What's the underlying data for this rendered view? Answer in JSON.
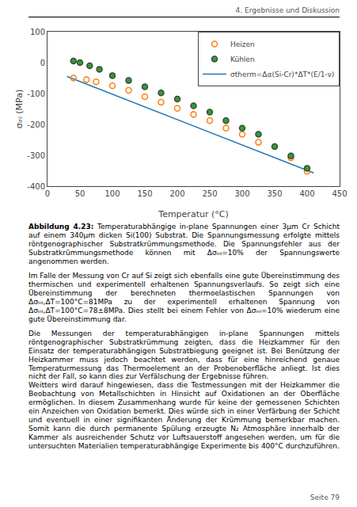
{
  "header": "4. Ergebnisse und Diskussion",
  "page": "Seite 79",
  "caption_label": "Abbildung 4.23:",
  "caption": " Temperaturabhängige in-plane Spannungen einer 3µm Cr Schicht auf einem 340µm dicken Si(100) Substrat. Die Spannungsmessung erfolgte mittels röntgenographischer Substratkrümmungsmethode. Die Spannungsfehler aus der Substratkrümmungsmethode können mit Δσᵢₙₗ=10% der Spannungswerte angenommen werden.",
  "paragraphs": [
    "Im Falle der Messung von Cr auf Si zeigt sich ebenfalls eine gute Übereinstimmung des thermischen und experimentell erhaltenen Spannungsverlaufs. So zeigt sich eine Übereinstimmung der berechneten thermoelastischen Spannungen von Δσᵢₙₗ,ΔT=100°C=81MPa zu der experimentell erhaltenen Spannung von Δσᵢₙₗ,ΔT=100°C=78±8MPa. Dies stellt bei einem Fehler von Δσᵢₙₗ=10% wiederum eine gute Übereinstimmung dar.",
    "Die Messungen der temperaturabhängigen in-plane Spannungen mittels röntgenographischer Substratkrümmung zeigten, dass die Heizkammer für den Einsatz der temperaturabhängigen Substratbiegung geeignet ist. Bei Benützung der Heizkammer muss jedoch beachtet werden, dass für eine hinreichend genaue Temperaturmessung das Thermoelement an der Probenoberfläche anliegt. Ist dies nicht der Fall, so kann dies zur Verfälschung der Ergebnisse führen.\nWeitters wird darauf hingewiesen, dass die Testmessungen mit der Heizkammer die Beobachtung von Metallschichten in Hinsicht auf Oxidationen an der Oberfläche ermöglichen. In diesem Zusammenhang wurde für keine der gemessenen Schichten ein Anzeichen von Oxidation bemerkt. Dies würde sich in einer Verfärbung der Schicht und eventuell in einer signifikanten Änderung der Krümmung bemerkbar machen. Somit kann die durch permanente Spülung erzeugte N₂ Atmosphäre innerhalb der Kammer als ausreichender Schutz vor Luftsauerstoff angesehen werden, um für die untersuchten Materialien temperaturabhängige Experimente bis 400°C durchzuführen."
  ],
  "chart_data": {
    "type": "scatter",
    "x_label": "Temperatur (°C)",
    "y_label": "σᵢₙₗ (MPa)",
    "xlim": [
      0,
      450
    ],
    "ylim": [
      -400,
      100
    ],
    "xticks": [
      0,
      50,
      100,
      150,
      200,
      250,
      300,
      350,
      400,
      450
    ],
    "yticks": [
      -400,
      -300,
      -200,
      -100,
      0,
      100
    ],
    "grid": false,
    "legend": "upper right",
    "series": [
      {
        "name": "Heizen",
        "type": "scatter",
        "marker": "open",
        "x": [
          40,
          60,
          75,
          100,
          125,
          150,
          175,
          200,
          225,
          250,
          275,
          300,
          325,
          375,
          400
        ],
        "values": [
          -50,
          -55,
          -62,
          -75,
          -90,
          -110,
          -128,
          -148,
          -168,
          -188,
          -212,
          -232,
          -258,
          -308,
          -352
        ]
      },
      {
        "name": "Kühlen",
        "type": "scatter",
        "marker": "filled",
        "x": [
          40,
          50,
          65,
          80,
          100,
          125,
          150,
          175,
          200,
          225,
          250,
          275,
          300,
          325,
          350,
          375,
          400
        ],
        "values": [
          5,
          0,
          -10,
          -22,
          -42,
          -58,
          -78,
          -98,
          -118,
          -140,
          -160,
          -188,
          -212,
          -232,
          -272,
          -302,
          -342
        ]
      },
      {
        "name": "σtherm=Δα(Si-Cr)*ΔT*(E/1-ν)",
        "type": "line",
        "line_style": "solid",
        "x": [
          30,
          410
        ],
        "values": [
          -45,
          -357
        ]
      }
    ]
  }
}
